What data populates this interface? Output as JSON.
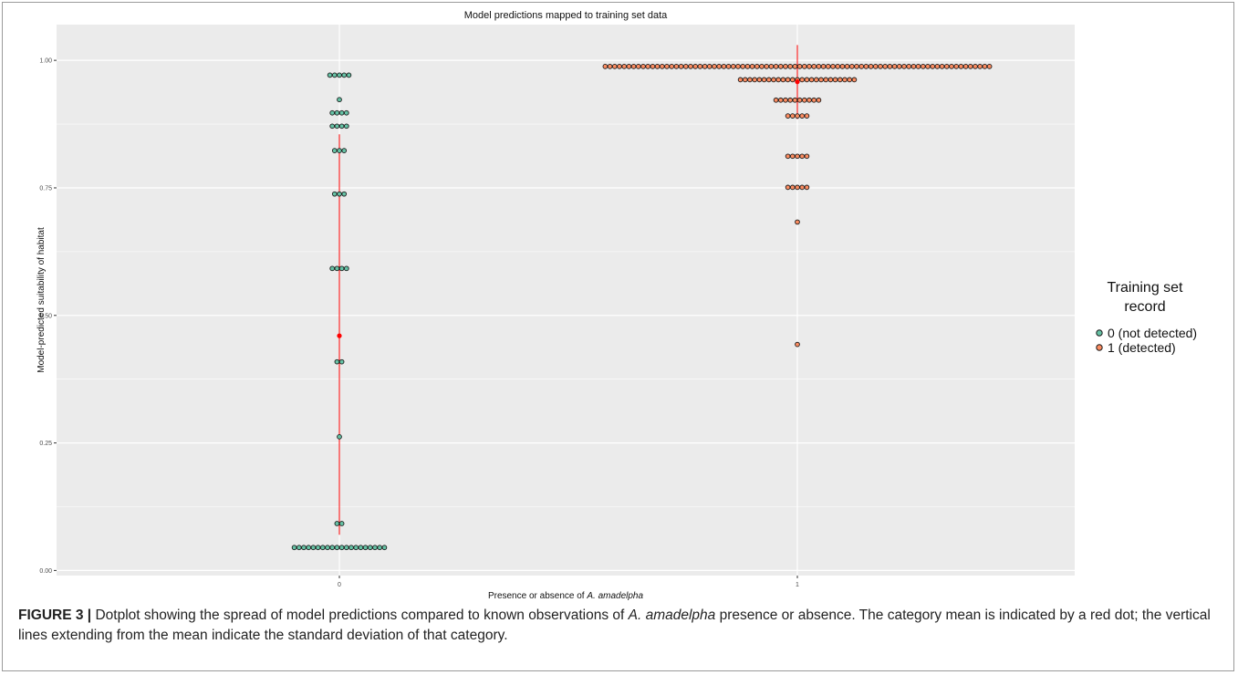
{
  "chart_data": {
    "type": "dotplot",
    "title": "Model predictions mapped to training set data",
    "xlabel_prefix": "Presence or absence of ",
    "xlabel_species": "A. amadelpha",
    "ylabel": "Model-predicted suitability of habitat",
    "categories": [
      "0",
      "1"
    ],
    "yticks": [
      "0.00",
      "0.25",
      "0.50",
      "0.75",
      "1.00"
    ],
    "ylim": [
      -0.01,
      1.07
    ],
    "legend": {
      "title_line1": "Training set",
      "title_line2": "record",
      "placement": "right",
      "items": [
        "0 (not detected)",
        "1 (detected)"
      ]
    },
    "colors": {
      "absent": "#66c2a5",
      "present": "#fc8d62",
      "mean": "#ff0000",
      "panel": "#ebebeb",
      "grid": "#ffffff"
    },
    "series": [
      {
        "name": "0 (not detected)",
        "category": "0",
        "mean": 0.46,
        "sd_range": [
          0.07,
          0.855
        ],
        "bins": [
          {
            "y": 0.971,
            "count": 5
          },
          {
            "y": 0.923,
            "count": 1
          },
          {
            "y": 0.897,
            "count": 4
          },
          {
            "y": 0.871,
            "count": 4
          },
          {
            "y": 0.823,
            "count": 3
          },
          {
            "y": 0.738,
            "count": 3
          },
          {
            "y": 0.592,
            "count": 4
          },
          {
            "y": 0.409,
            "count": 2
          },
          {
            "y": 0.262,
            "count": 1
          },
          {
            "y": 0.092,
            "count": 2
          },
          {
            "y": 0.045,
            "count": 20
          }
        ]
      },
      {
        "name": "1 (detected)",
        "category": "1",
        "mean": 0.958,
        "sd_range": [
          0.885,
          1.03
        ],
        "bins": [
          {
            "y": 0.988,
            "count": 82
          },
          {
            "y": 0.962,
            "count": 25
          },
          {
            "y": 0.922,
            "count": 10
          },
          {
            "y": 0.891,
            "count": 5
          },
          {
            "y": 0.812,
            "count": 5
          },
          {
            "y": 0.751,
            "count": 5
          },
          {
            "y": 0.683,
            "count": 1
          },
          {
            "y": 0.443,
            "count": 1
          }
        ]
      }
    ]
  },
  "caption": {
    "label": "FIGURE 3 |",
    "text_part1": " Dotplot showing the spread of model predictions compared to known observations of ",
    "species": "A. amadelpha",
    "text_part2": " presence or absence. The category mean is indicated by a red dot; the vertical lines extending from the mean indicate the standard deviation of that category."
  }
}
